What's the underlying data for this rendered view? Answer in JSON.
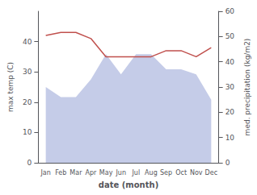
{
  "chart_data": {
    "type": "line",
    "xlabel": "date (month)",
    "ylabel": "max temp (C)",
    "y2label": "med. precipitation (kg/m2)",
    "categories": [
      "Jan",
      "Feb",
      "Mar",
      "Apr",
      "May",
      "Jun",
      "Jul",
      "Aug",
      "Sep",
      "Oct",
      "Nov",
      "Dec"
    ],
    "series": [
      {
        "type": "line",
        "color": "#c0504d",
        "values": [
          42,
          43,
          43,
          41,
          35,
          35,
          35,
          35,
          37,
          37,
          35,
          38
        ]
      },
      {
        "type": "area",
        "color": "#c5cce8",
        "axis": "y2",
        "values": [
          30,
          26,
          26,
          33,
          43,
          35,
          43,
          43,
          37,
          37,
          35,
          25
        ]
      }
    ],
    "ylim": [
      0,
      50
    ],
    "yticks": [
      0,
      10,
      20,
      30,
      40
    ],
    "y2lim": [
      0,
      60
    ],
    "y2ticks": [
      0,
      10,
      20,
      30,
      40,
      50,
      60
    ],
    "grid": false
  }
}
